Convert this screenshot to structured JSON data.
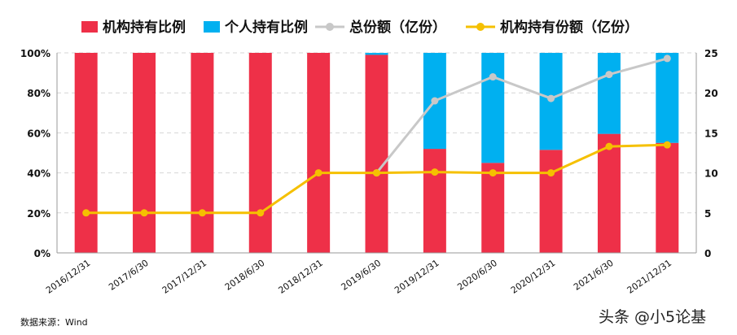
{
  "chart_data": {
    "type": "bar",
    "stacked": true,
    "categories": [
      "2016/12/31",
      "2017/6/30",
      "2017/12/31",
      "2018/6/30",
      "2018/12/31",
      "2019/6/30",
      "2019/12/31",
      "2020/6/30",
      "2020/12/31",
      "2021/6/30",
      "2021/12/31"
    ],
    "series": [
      {
        "name": "机构持有比例",
        "kind": "bar",
        "axis": "left",
        "color": "#ee3048",
        "values": [
          100,
          100,
          100,
          100,
          100,
          99,
          52,
          45,
          51.5,
          59.5,
          55
        ]
      },
      {
        "name": "个人持有比例",
        "kind": "bar",
        "axis": "left",
        "color": "#00b0f0",
        "values": [
          0,
          0,
          0,
          0,
          0,
          1,
          48,
          55,
          48.5,
          40.5,
          45
        ]
      },
      {
        "name": "总份额（亿份）",
        "kind": "line",
        "axis": "right",
        "color": "#c8c8c8",
        "values": [
          null,
          null,
          null,
          null,
          null,
          10,
          19,
          22,
          19.3,
          22.3,
          24.3
        ]
      },
      {
        "name": "机构持有份额（亿份）",
        "kind": "line",
        "axis": "right",
        "color": "#f5c000",
        "values": [
          5,
          5,
          5,
          5,
          10,
          10,
          10.1,
          10,
          10,
          13.3,
          13.5
        ]
      }
    ],
    "y_left": {
      "ticks": [
        "0%",
        "20%",
        "40%",
        "60%",
        "80%",
        "100%"
      ],
      "lim": [
        0,
        100
      ]
    },
    "y_right": {
      "ticks": [
        "0",
        "5",
        "10",
        "15",
        "20",
        "25"
      ],
      "lim": [
        0,
        25
      ]
    },
    "grid": true,
    "legend": "top"
  },
  "footer": {
    "source": "数据来源：Wind",
    "watermark": "头条 @小5论基"
  }
}
